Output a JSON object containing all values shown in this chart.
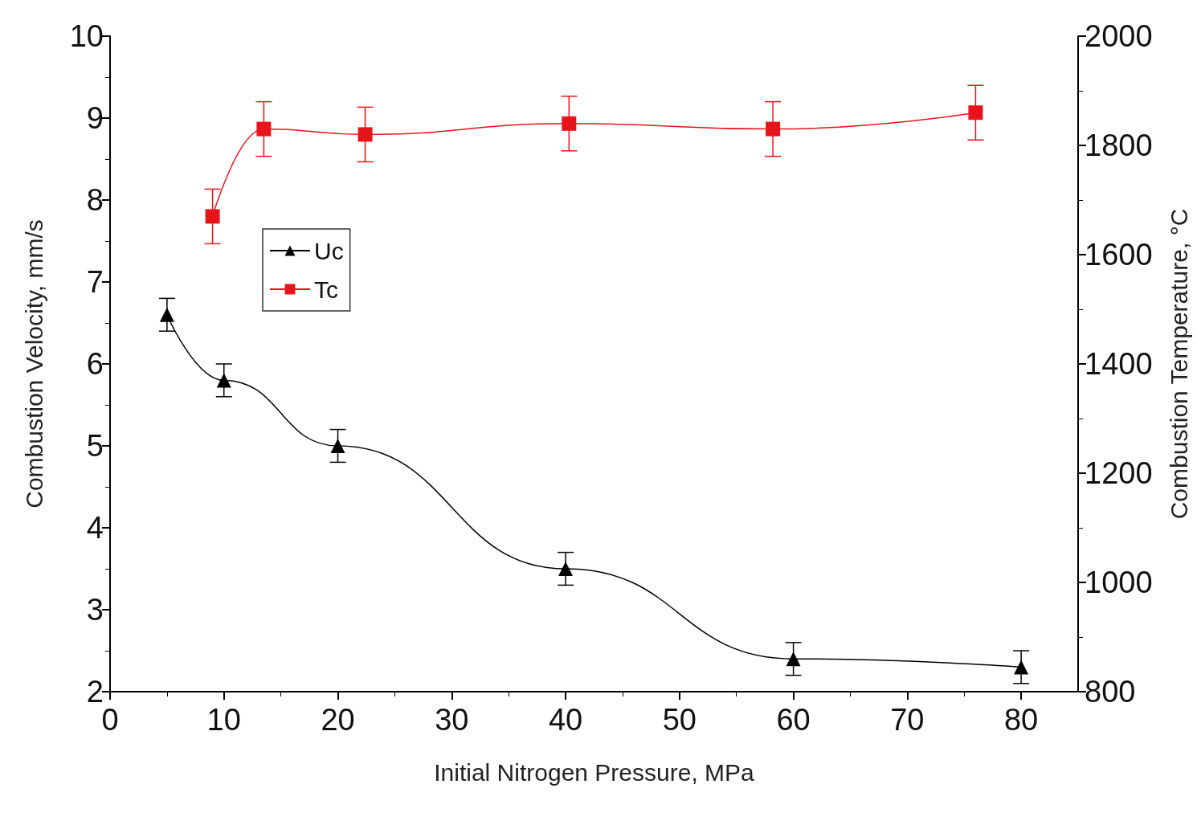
{
  "chart_data": {
    "type": "line",
    "xlabel": "Initial Nitrogen Pressure, MPa",
    "ylabel": "Combustion Velocity, mm/s",
    "y2label": "Combustion Temperature, °C",
    "xlim": [
      0,
      85
    ],
    "xticks": [
      0,
      10,
      20,
      30,
      40,
      50,
      60,
      70,
      80
    ],
    "ylim": [
      2,
      10
    ],
    "yticks": [
      2,
      3,
      4,
      5,
      6,
      7,
      8,
      9,
      10
    ],
    "y2lim": [
      800,
      2000
    ],
    "y2ticks": [
      800,
      1000,
      1200,
      1400,
      1600,
      1800,
      2000
    ],
    "legend": "top left",
    "grid": false,
    "line_style": "solid",
    "series": [
      {
        "name": "Uc",
        "color": "#000000",
        "marker": "triangle",
        "x": [
          5,
          10,
          20,
          40,
          60,
          80
        ],
        "values": [
          6.6,
          5.8,
          5.0,
          3.5,
          2.4,
          2.3
        ],
        "errors": [
          0.2,
          0.2,
          0.2,
          0.2,
          0.2,
          0.2
        ]
      },
      {
        "name": "Tc",
        "color": "#e8141c",
        "marker": "square",
        "axis": "y2",
        "x": [
          9,
          13.5,
          22.4,
          40.3,
          58.2,
          76
        ],
        "values": [
          1670,
          1830,
          1820,
          1840,
          1830,
          1860
        ],
        "errors": [
          50,
          50,
          50,
          50,
          50,
          50
        ]
      }
    ]
  }
}
